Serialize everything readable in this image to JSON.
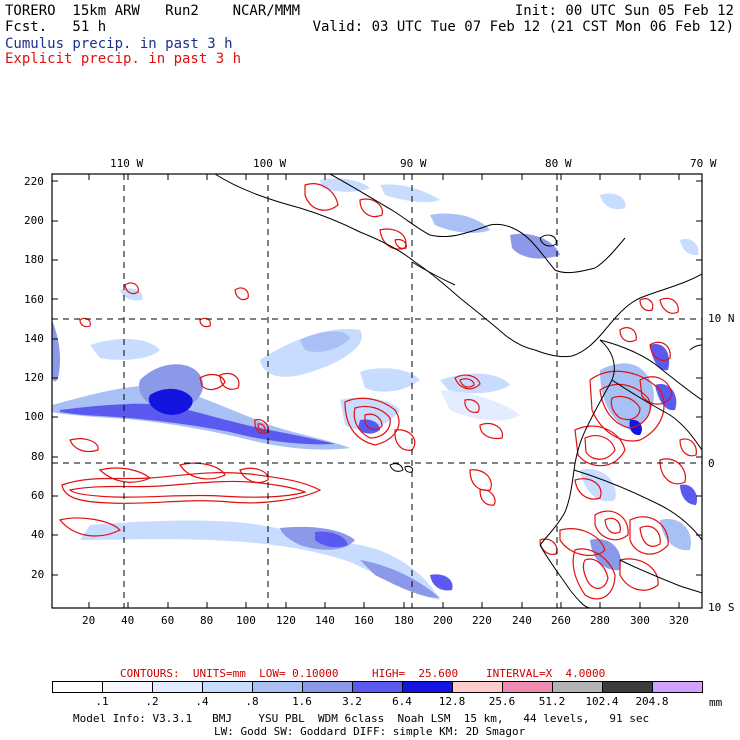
{
  "header": {
    "left_line1": "TORERO  15km ARW   Run2    NCAR/MMM",
    "left_line2": "Fcst.   51 h",
    "init": "Init: 00 UTC Sun 05 Feb 12",
    "valid": "Valid: 03 UTC Tue 07 Feb 12 (21 CST Mon 06 Feb 12)",
    "legend_cumulus": "Cumulus precip. in past 3 h",
    "legend_explicit": "Explicit precip. in past 3 h",
    "legend_cumulus_color": "#1a2f8c",
    "legend_explicit_color": "#e01010"
  },
  "top_longitudes": [
    "110 W",
    "100 W",
    "90 W",
    "80 W",
    "70 W"
  ],
  "right_latitudes": [
    "10 N",
    "0",
    "10 S"
  ],
  "y_ticks": [
    "220",
    "200",
    "180",
    "160",
    "140",
    "120",
    "100",
    "80",
    "60",
    "40",
    "20"
  ],
  "x_ticks": [
    "20",
    "40",
    "60",
    "80",
    "100",
    "120",
    "140",
    "160",
    "180",
    "200",
    "220",
    "240",
    "260",
    "280",
    "300",
    "320"
  ],
  "contour_info": {
    "contours": "CONTOURS:  UNITS=mm  LOW= 0.10000",
    "high": "HIGH=  25.600",
    "interval": "INTERVAL=X  4.0000",
    "color": "#cc0000"
  },
  "colorbar": {
    "labels": [
      ".1",
      ".2",
      ".4",
      ".8",
      "1.6",
      "3.2",
      "6.4",
      "12.8",
      "25.6",
      "51.2",
      "102.4",
      "204.8"
    ],
    "units": "mm",
    "colors": [
      "#ffffff",
      "#f4f7ff",
      "#e4ecff",
      "#c8dcff",
      "#a8c0f4",
      "#8c98e8",
      "#5a5af0",
      "#1414e0",
      "#ffcccc",
      "#f08cb4",
      "#b4b4b4",
      "#3c3c3c",
      "#d2a0ff"
    ]
  },
  "footer": {
    "line1": "Model Info: V3.3.1   BMJ    YSU PBL  WDM 6class  Noah LSM  15 km,   44 levels,   91 sec",
    "line2": "LW: Godd SW: Goddard DIFF: simple KM: 2D Smagor"
  }
}
